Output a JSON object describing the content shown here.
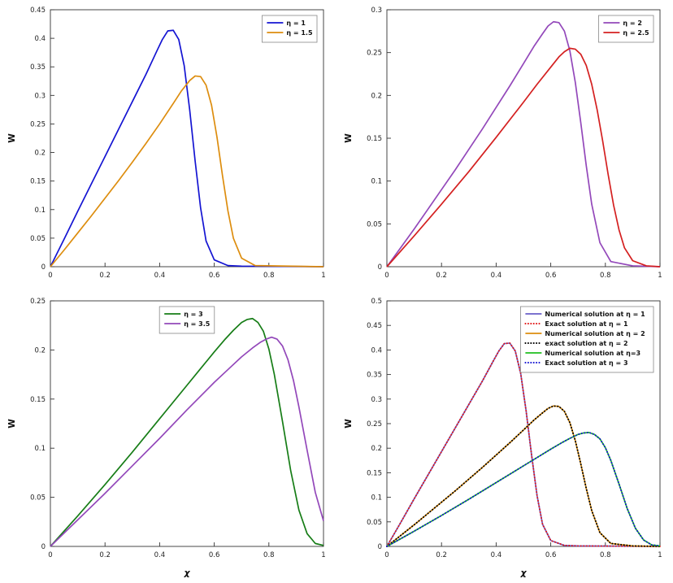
{
  "figure": {
    "background": "#ffffff",
    "axis_color": "#333333",
    "tick_label_color": "#222222"
  },
  "curves": {
    "eta1": {
      "x": [
        0,
        0.05,
        0.1,
        0.15,
        0.2,
        0.25,
        0.3,
        0.35,
        0.39,
        0.41,
        0.43,
        0.45,
        0.47,
        0.49,
        0.51,
        0.53,
        0.55,
        0.57,
        0.6,
        0.65,
        0.7,
        1
      ],
      "y": [
        0,
        0.048,
        0.097,
        0.145,
        0.193,
        0.241,
        0.289,
        0.337,
        0.378,
        0.398,
        0.413,
        0.414,
        0.398,
        0.352,
        0.275,
        0.185,
        0.103,
        0.045,
        0.012,
        0.002,
        0.001,
        0
      ]
    },
    "eta1_5": {
      "x": [
        0,
        0.05,
        0.1,
        0.15,
        0.2,
        0.25,
        0.3,
        0.35,
        0.4,
        0.45,
        0.48,
        0.51,
        0.53,
        0.55,
        0.57,
        0.59,
        0.61,
        0.63,
        0.65,
        0.67,
        0.7,
        0.75,
        1
      ],
      "y": [
        0,
        0.029,
        0.059,
        0.089,
        0.12,
        0.151,
        0.183,
        0.216,
        0.25,
        0.286,
        0.308,
        0.326,
        0.334,
        0.333,
        0.318,
        0.283,
        0.227,
        0.16,
        0.098,
        0.05,
        0.015,
        0.002,
        0
      ]
    },
    "eta2": {
      "x": [
        0,
        0.05,
        0.1,
        0.15,
        0.2,
        0.25,
        0.3,
        0.35,
        0.4,
        0.45,
        0.5,
        0.54,
        0.57,
        0.59,
        0.61,
        0.63,
        0.65,
        0.67,
        0.69,
        0.71,
        0.73,
        0.75,
        0.78,
        0.82,
        0.9,
        1
      ],
      "y": [
        0,
        0.022,
        0.044,
        0.067,
        0.09,
        0.113,
        0.137,
        0.161,
        0.186,
        0.211,
        0.237,
        0.258,
        0.272,
        0.281,
        0.286,
        0.285,
        0.275,
        0.252,
        0.215,
        0.168,
        0.118,
        0.073,
        0.028,
        0.006,
        0.001,
        0
      ]
    },
    "eta2_5": {
      "x": [
        0,
        0.1,
        0.2,
        0.3,
        0.4,
        0.5,
        0.55,
        0.6,
        0.63,
        0.65,
        0.67,
        0.69,
        0.71,
        0.73,
        0.75,
        0.77,
        0.79,
        0.81,
        0.83,
        0.85,
        0.87,
        0.9,
        0.95,
        1
      ],
      "y": [
        0,
        0.036,
        0.073,
        0.111,
        0.151,
        0.192,
        0.213,
        0.233,
        0.245,
        0.251,
        0.255,
        0.254,
        0.248,
        0.235,
        0.213,
        0.183,
        0.147,
        0.108,
        0.072,
        0.043,
        0.022,
        0.007,
        0.001,
        0
      ]
    },
    "eta3": {
      "x": [
        0,
        0.1,
        0.2,
        0.3,
        0.4,
        0.5,
        0.55,
        0.6,
        0.64,
        0.67,
        0.7,
        0.72,
        0.74,
        0.76,
        0.78,
        0.8,
        0.82,
        0.85,
        0.88,
        0.91,
        0.94,
        0.97,
        1
      ],
      "y": [
        0,
        0.031,
        0.063,
        0.096,
        0.13,
        0.164,
        0.181,
        0.198,
        0.211,
        0.22,
        0.228,
        0.231,
        0.232,
        0.228,
        0.219,
        0.201,
        0.175,
        0.127,
        0.077,
        0.037,
        0.013,
        0.003,
        0.001
      ]
    },
    "eta3_5": {
      "x": [
        0,
        0.1,
        0.2,
        0.3,
        0.4,
        0.5,
        0.6,
        0.65,
        0.7,
        0.74,
        0.77,
        0.79,
        0.81,
        0.83,
        0.85,
        0.87,
        0.89,
        0.91,
        0.94,
        0.97,
        1
      ],
      "y": [
        0,
        0.027,
        0.054,
        0.082,
        0.11,
        0.139,
        0.167,
        0.18,
        0.193,
        0.202,
        0.208,
        0.211,
        0.213,
        0.211,
        0.204,
        0.19,
        0.169,
        0.142,
        0.098,
        0.055,
        0.026
      ]
    }
  },
  "chart_data": [
    {
      "type": "line",
      "title": "",
      "xlabel": "",
      "ylabel": "W",
      "xlim": [
        0,
        1
      ],
      "ylim": [
        0,
        0.45
      ],
      "xticks": [
        0,
        0.2,
        0.4,
        0.6,
        0.8,
        1
      ],
      "xtick_labels": [
        "0",
        "0.2",
        "0.4",
        "0.6",
        "0.8",
        "1"
      ],
      "yticks": [
        0,
        0.05,
        0.1,
        0.15,
        0.2,
        0.25,
        0.3,
        0.35,
        0.4,
        0.45
      ],
      "ytick_labels": [
        "0",
        "0.05",
        "0.1",
        "0.15",
        "0.2",
        "0.25",
        "0.3",
        "0.35",
        "0.4",
        "0.45"
      ],
      "grid": false,
      "legend_position": "top-right",
      "series": [
        {
          "label": "η = 1",
          "color": "#1414d2",
          "style": "solid",
          "curve": "eta1"
        },
        {
          "label": "η = 1.5",
          "color": "#dd8d0e",
          "style": "solid",
          "curve": "eta1_5"
        }
      ]
    },
    {
      "type": "line",
      "title": "",
      "xlabel": "",
      "ylabel": "W",
      "xlim": [
        0,
        1
      ],
      "ylim": [
        0,
        0.3
      ],
      "xticks": [
        0,
        0.2,
        0.4,
        0.6,
        0.8,
        1
      ],
      "xtick_labels": [
        "0",
        "0.2",
        "0.4",
        "0.6",
        "0.8",
        "1"
      ],
      "yticks": [
        0,
        0.05,
        0.1,
        0.15,
        0.2,
        0.25,
        0.3
      ],
      "ytick_labels": [
        "0",
        "0.05",
        "0.1",
        "0.15",
        "0.2",
        "0.25",
        "0.3"
      ],
      "grid": false,
      "legend_position": "top-right",
      "series": [
        {
          "label": "η = 2",
          "color": "#9348ba",
          "style": "solid",
          "curve": "eta2"
        },
        {
          "label": "η = 2.5",
          "color": "#d42020",
          "style": "solid",
          "curve": "eta2_5"
        }
      ]
    },
    {
      "type": "line",
      "title": "",
      "xlabel": "χ",
      "ylabel": "W",
      "xlim": [
        0,
        1
      ],
      "ylim": [
        0,
        0.25
      ],
      "xticks": [
        0,
        0.2,
        0.4,
        0.6,
        0.8,
        1
      ],
      "xtick_labels": [
        "0",
        "0.2",
        "0.4",
        "0.6",
        "0.8",
        "1"
      ],
      "yticks": [
        0,
        0.05,
        0.1,
        0.15,
        0.2,
        0.25
      ],
      "ytick_labels": [
        "0",
        "0.05",
        "0.1",
        "0.15",
        "0.2",
        "0.25"
      ],
      "grid": false,
      "legend_position": "top-center",
      "series": [
        {
          "label": "η = 3",
          "color": "#177d17",
          "style": "solid",
          "curve": "eta3"
        },
        {
          "label": "η = 3.5",
          "color": "#9348ba",
          "style": "solid",
          "curve": "eta3_5"
        }
      ]
    },
    {
      "type": "line",
      "title": "",
      "xlabel": "χ",
      "ylabel": "W",
      "xlim": [
        0,
        1
      ],
      "ylim": [
        0,
        0.5
      ],
      "xticks": [
        0,
        0.2,
        0.4,
        0.6,
        0.8,
        1
      ],
      "xtick_labels": [
        "0",
        "0.2",
        "0.4",
        "0.6",
        "0.8",
        "1"
      ],
      "yticks": [
        0,
        0.05,
        0.1,
        0.15,
        0.2,
        0.25,
        0.3,
        0.35,
        0.4,
        0.45,
        0.5
      ],
      "ytick_labels": [
        "0",
        "0.05",
        "0.1",
        "0.15",
        "0.2",
        "0.25",
        "0.3",
        "0.35",
        "0.4",
        "0.45",
        "0.5"
      ],
      "grid": false,
      "legend_position": "top-right",
      "series": [
        {
          "label": "Numerical solution at η = 1",
          "color": "#6a5fc8",
          "style": "solid",
          "curve": "eta1"
        },
        {
          "label": "Exact solution at η = 1",
          "color": "#e01515",
          "style": "dotted",
          "curve": "eta1"
        },
        {
          "label": "Numerical solution at η = 2",
          "color": "#dd8d0e",
          "style": "solid",
          "curve": "eta2"
        },
        {
          "label": "exact solution at η = 2",
          "color": "#000000",
          "style": "dotted",
          "curve": "eta2"
        },
        {
          "label": "Numerical solution at η=3",
          "color": "#1fbf1f",
          "style": "solid",
          "curve": "eta3"
        },
        {
          "label": "Exact solution at η = 3",
          "color": "#1414d2",
          "style": "dotted",
          "curve": "eta3"
        }
      ]
    }
  ]
}
